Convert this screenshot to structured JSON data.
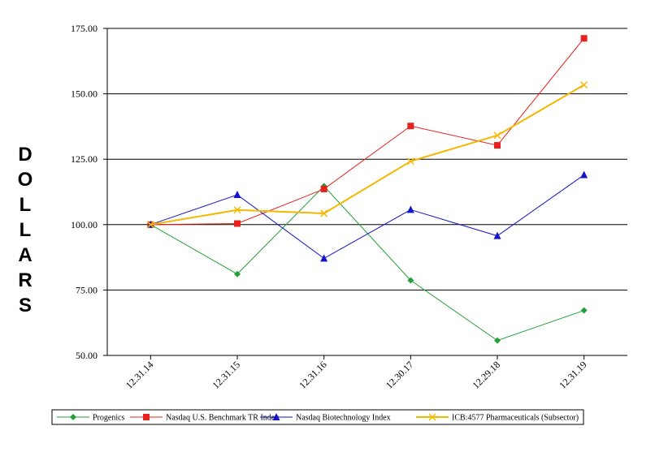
{
  "chart_data": {
    "type": "line",
    "title": "",
    "xlabel": "",
    "ylabel": "DOLLARS",
    "categories": [
      "12.31.14",
      "12.31.15",
      "12.31.16",
      "12.30.17",
      "12.29.18",
      "12.31.19"
    ],
    "ylim": [
      50,
      175
    ],
    "yticks": [
      "50.00",
      "75.00",
      "100.00",
      "125.00",
      "150.00",
      "175.00"
    ],
    "grid": "horizontal",
    "legend_position": "bottom",
    "series": [
      {
        "name": "Progenics",
        "color": "#22a035",
        "marker": "diamond",
        "values": [
          100.0,
          81.1,
          114.7,
          78.7,
          55.7,
          67.2
        ]
      },
      {
        "name": "Nasdaq U.S. Benchmark TR Index",
        "color": "#e8201e",
        "marker": "square",
        "values": [
          100.0,
          100.4,
          113.6,
          137.7,
          130.3,
          171.2
        ]
      },
      {
        "name": "Nasdaq Biotechnology Index",
        "color": "#1414c8",
        "marker": "triangle",
        "values": [
          100.0,
          111.4,
          87.1,
          105.7,
          95.7,
          119.0
        ]
      },
      {
        "name": "ICB:4577 Pharmaceuticals (Subsector)",
        "color": "#f5b800",
        "marker": "x",
        "values": [
          100.0,
          105.6,
          104.3,
          124.2,
          134.1,
          153.4
        ]
      }
    ]
  }
}
